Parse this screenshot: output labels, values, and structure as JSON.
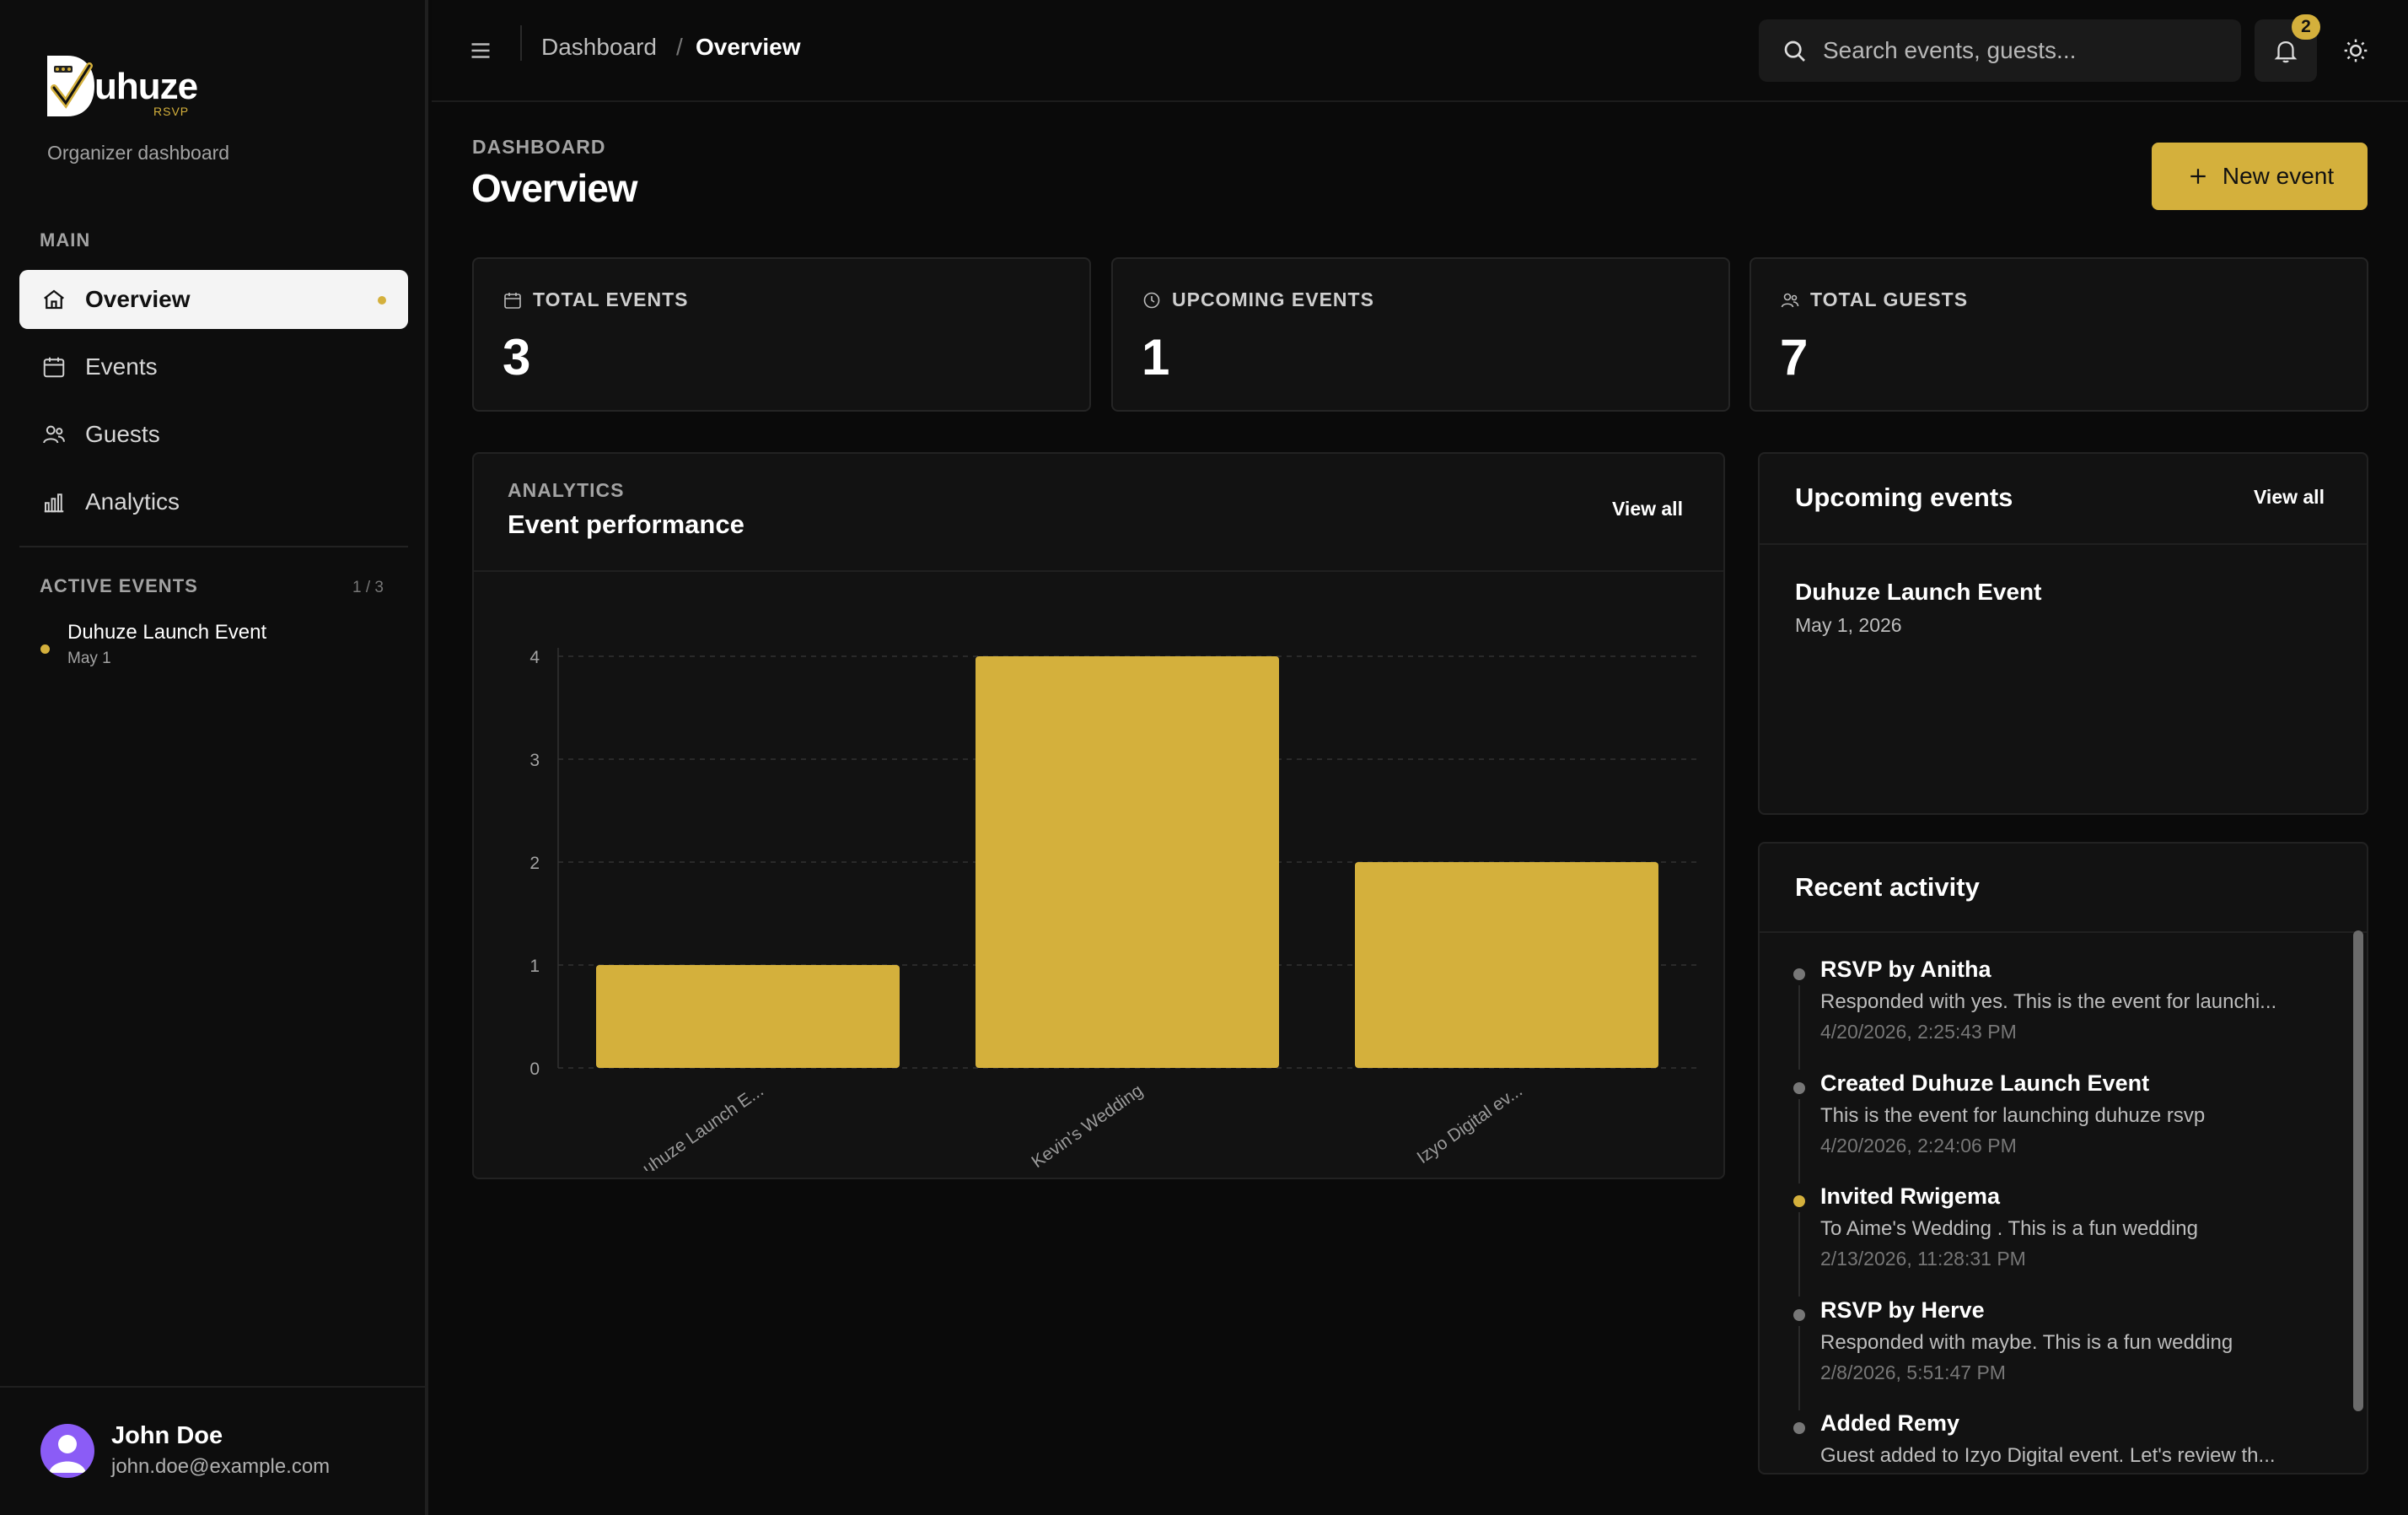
{
  "brand": {
    "name": "uhuze",
    "sub": "RSVP",
    "tagline": "Organizer dashboard"
  },
  "sidebar": {
    "main_label": "MAIN",
    "items": [
      {
        "label": "Overview",
        "icon": "home-icon"
      },
      {
        "label": "Events",
        "icon": "calendar-icon"
      },
      {
        "label": "Guests",
        "icon": "users-icon"
      },
      {
        "label": "Analytics",
        "icon": "bar-chart-icon"
      }
    ],
    "active_events_label": "ACTIVE EVENTS",
    "active_events_count": "1 / 3",
    "active_events": [
      {
        "name": "Duhuze Launch Event",
        "date": "May 1"
      }
    ]
  },
  "user": {
    "name": "John Doe",
    "email": "john.doe@example.com"
  },
  "topbar": {
    "breadcrumb_root": "Dashboard",
    "breadcrumb_sep": "/",
    "breadcrumb_current": "Overview",
    "search_placeholder": "Search events, guests...",
    "notifications": "2"
  },
  "header": {
    "eyebrow": "DASHBOARD",
    "title": "Overview",
    "new_event": "New event"
  },
  "stats": [
    {
      "label": "TOTAL EVENTS",
      "value": "3",
      "icon": "calendar-icon"
    },
    {
      "label": "UPCOMING EVENTS",
      "value": "1",
      "icon": "clock-icon"
    },
    {
      "label": "TOTAL GUESTS",
      "value": "7",
      "icon": "users-icon"
    }
  ],
  "performance": {
    "eyebrow": "ANALYTICS",
    "title": "Event performance",
    "view_all": "View all"
  },
  "chart_data": {
    "type": "bar",
    "categories": [
      "uhuze Launch E...",
      "Kevin's Wedding",
      "Izyo Digital ev..."
    ],
    "values": [
      1,
      4,
      2
    ],
    "yticks": [
      "0",
      "1",
      "2",
      "3",
      "4"
    ],
    "ylim": [
      0,
      4
    ],
    "grid": true,
    "color": "#d4b03c"
  },
  "upcoming": {
    "title": "Upcoming events",
    "view_all": "View all",
    "events": [
      {
        "name": "Duhuze Launch Event",
        "date": "May 1, 2026"
      }
    ]
  },
  "activity": {
    "title": "Recent activity",
    "items": [
      {
        "title": "RSVP by Anitha",
        "desc": "Responded with yes. This is the event for launchi...",
        "time": "4/20/2026, 2:25:43 PM",
        "accent": false
      },
      {
        "title": "Created Duhuze Launch Event",
        "desc": "This is the event for launching duhuze rsvp",
        "time": "4/20/2026, 2:24:06 PM",
        "accent": false
      },
      {
        "title": "Invited Rwigema",
        "desc": "To Aime's Wedding . This is a fun wedding",
        "time": "2/13/2026, 11:28:31 PM",
        "accent": true
      },
      {
        "title": "RSVP by Herve",
        "desc": "Responded with maybe. This is a fun wedding",
        "time": "2/8/2026, 5:51:47 PM",
        "accent": false
      },
      {
        "title": "Added Remy",
        "desc": "Guest added to Izyo Digital event. Let's review th...",
        "time": "",
        "accent": false
      }
    ]
  },
  "colors": {
    "accent": "#d4b03c",
    "background": "#0a0a0a",
    "card": "#121212"
  }
}
